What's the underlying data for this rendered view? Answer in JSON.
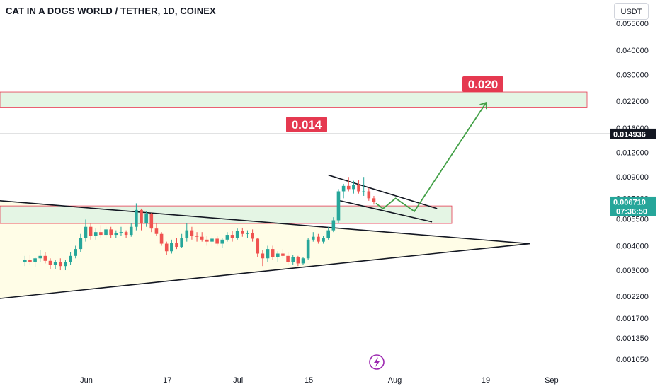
{
  "header": {
    "title": "CAT IN A DOGS WORLD / TETHER, 1D, COINEX",
    "currency": "USDT"
  },
  "chart_data": {
    "type": "candlestick",
    "scale": "log",
    "ylim": [
      0.00098,
      0.058
    ],
    "y_ticks": [
      {
        "label": "0.055000",
        "value": 0.055
      },
      {
        "label": "0.040000",
        "value": 0.04
      },
      {
        "label": "0.030000",
        "value": 0.03
      },
      {
        "label": "0.022000",
        "value": 0.022
      },
      {
        "label": "0.016000",
        "value": 0.016
      },
      {
        "label": "0.012000",
        "value": 0.012
      },
      {
        "label": "0.009000",
        "value": 0.009
      },
      {
        "label": "0.007000",
        "value": 0.007
      },
      {
        "label": "0.005500",
        "value": 0.0055
      },
      {
        "label": "0.004000",
        "value": 0.004
      },
      {
        "label": "0.003000",
        "value": 0.003
      },
      {
        "label": "0.002200",
        "value": 0.0022
      },
      {
        "label": "0.001700",
        "value": 0.0017
      },
      {
        "label": "0.001350",
        "value": 0.00135
      },
      {
        "label": "0.001050",
        "value": 0.00105
      }
    ],
    "x_ticks": [
      {
        "label": "Jun",
        "day": 12
      },
      {
        "label": "17",
        "day": 28
      },
      {
        "label": "Jul",
        "day": 42
      },
      {
        "label": "15",
        "day": 56
      },
      {
        "label": "Aug",
        "day": 73
      },
      {
        "label": "19",
        "day": 91
      },
      {
        "label": "Sep",
        "day": 104
      }
    ],
    "candles": [
      [
        0.0033,
        0.00355,
        0.00315,
        0.0034
      ],
      [
        0.0034,
        0.0036,
        0.0032,
        0.0033
      ],
      [
        0.0033,
        0.0035,
        0.0031,
        0.00345
      ],
      [
        0.00345,
        0.0038,
        0.0033,
        0.00355
      ],
      [
        0.00355,
        0.0037,
        0.00325,
        0.00335
      ],
      [
        0.00335,
        0.00345,
        0.00305,
        0.0032
      ],
      [
        0.0032,
        0.0034,
        0.00305,
        0.0033
      ],
      [
        0.0033,
        0.00345,
        0.003,
        0.00315
      ],
      [
        0.00315,
        0.0034,
        0.003,
        0.0033
      ],
      [
        0.0033,
        0.0037,
        0.0032,
        0.00355
      ],
      [
        0.00355,
        0.004,
        0.00345,
        0.00385
      ],
      [
        0.00385,
        0.0046,
        0.0037,
        0.0044
      ],
      [
        0.0044,
        0.00545,
        0.0042,
        0.005
      ],
      [
        0.005,
        0.0052,
        0.0043,
        0.0045
      ],
      [
        0.0045,
        0.0049,
        0.0043,
        0.0047
      ],
      [
        0.0047,
        0.0051,
        0.0044,
        0.00455
      ],
      [
        0.00455,
        0.005,
        0.0044,
        0.00485
      ],
      [
        0.00485,
        0.005,
        0.0044,
        0.00455
      ],
      [
        0.00455,
        0.0048,
        0.0044,
        0.00465
      ],
      [
        0.00465,
        0.005,
        0.0045,
        0.0047
      ],
      [
        0.0047,
        0.0048,
        0.0044,
        0.00455
      ],
      [
        0.00455,
        0.0052,
        0.00445,
        0.005
      ],
      [
        0.005,
        0.0066,
        0.0048,
        0.0061
      ],
      [
        0.0061,
        0.0062,
        0.0048,
        0.0052
      ],
      [
        0.0052,
        0.006,
        0.005,
        0.0058
      ],
      [
        0.0058,
        0.0059,
        0.0047,
        0.0049
      ],
      [
        0.0049,
        0.0052,
        0.0045,
        0.0046
      ],
      [
        0.0046,
        0.0047,
        0.004,
        0.0041
      ],
      [
        0.0041,
        0.0042,
        0.0036,
        0.00375
      ],
      [
        0.00375,
        0.0043,
        0.00365,
        0.00415
      ],
      [
        0.00415,
        0.0044,
        0.00385,
        0.00395
      ],
      [
        0.00395,
        0.0046,
        0.0039,
        0.0044
      ],
      [
        0.0044,
        0.0052,
        0.0042,
        0.0048
      ],
      [
        0.0048,
        0.005,
        0.0043,
        0.0045
      ],
      [
        0.0045,
        0.0047,
        0.0042,
        0.00445
      ],
      [
        0.00445,
        0.0047,
        0.0042,
        0.0043
      ],
      [
        0.0043,
        0.0045,
        0.004,
        0.0042
      ],
      [
        0.0042,
        0.0045,
        0.0039,
        0.00435
      ],
      [
        0.00435,
        0.0045,
        0.004,
        0.0041
      ],
      [
        0.0041,
        0.0044,
        0.0039,
        0.0043
      ],
      [
        0.0043,
        0.0047,
        0.0042,
        0.00455
      ],
      [
        0.00455,
        0.00475,
        0.0042,
        0.0044
      ],
      [
        0.0044,
        0.0049,
        0.0043,
        0.00475
      ],
      [
        0.00475,
        0.00495,
        0.00445,
        0.0046
      ],
      [
        0.0046,
        0.0048,
        0.0044,
        0.00465
      ],
      [
        0.00465,
        0.00485,
        0.0042,
        0.00435
      ],
      [
        0.00435,
        0.0044,
        0.0035,
        0.00365
      ],
      [
        0.00365,
        0.0038,
        0.00315,
        0.00345
      ],
      [
        0.00345,
        0.004,
        0.0033,
        0.00385
      ],
      [
        0.00385,
        0.004,
        0.0034,
        0.0035
      ],
      [
        0.0035,
        0.00375,
        0.0033,
        0.00365
      ],
      [
        0.00365,
        0.00385,
        0.00345,
        0.00355
      ],
      [
        0.00355,
        0.0037,
        0.0032,
        0.0033
      ],
      [
        0.0033,
        0.0036,
        0.0032,
        0.0035
      ],
      [
        0.0035,
        0.00355,
        0.00315,
        0.00325
      ],
      [
        0.00325,
        0.0035,
        0.0032,
        0.00345
      ],
      [
        0.00345,
        0.0044,
        0.0034,
        0.0043
      ],
      [
        0.0043,
        0.0047,
        0.0042,
        0.00445
      ],
      [
        0.00445,
        0.0046,
        0.0041,
        0.0042
      ],
      [
        0.0042,
        0.0045,
        0.0041,
        0.0044
      ],
      [
        0.0044,
        0.005,
        0.0043,
        0.0048
      ],
      [
        0.0048,
        0.0056,
        0.0047,
        0.0054
      ],
      [
        0.0054,
        0.0078,
        0.0052,
        0.0076
      ],
      [
        0.0076,
        0.0083,
        0.007,
        0.0081
      ],
      [
        0.0081,
        0.009,
        0.0076,
        0.0078
      ],
      [
        0.0078,
        0.0086,
        0.0074,
        0.0082
      ],
      [
        0.0082,
        0.0087,
        0.0074,
        0.0076
      ],
      [
        0.0076,
        0.009,
        0.0072,
        0.0076
      ],
      [
        0.0076,
        0.0079,
        0.0068,
        0.007
      ],
      [
        0.007,
        0.0072,
        0.0065,
        0.00671
      ]
    ],
    "annotations": {
      "target_high_label": "0.020",
      "target_mid_label": "0.014",
      "upper_zone": [
        0.0205,
        0.0245
      ],
      "lower_zone": [
        0.0052,
        0.0064
      ],
      "resistance_level": 0.014936,
      "current_price": 0.00671,
      "countdown": "07:36:50",
      "current_price_label": "0.006710",
      "resistance_label": "0.014936"
    }
  }
}
